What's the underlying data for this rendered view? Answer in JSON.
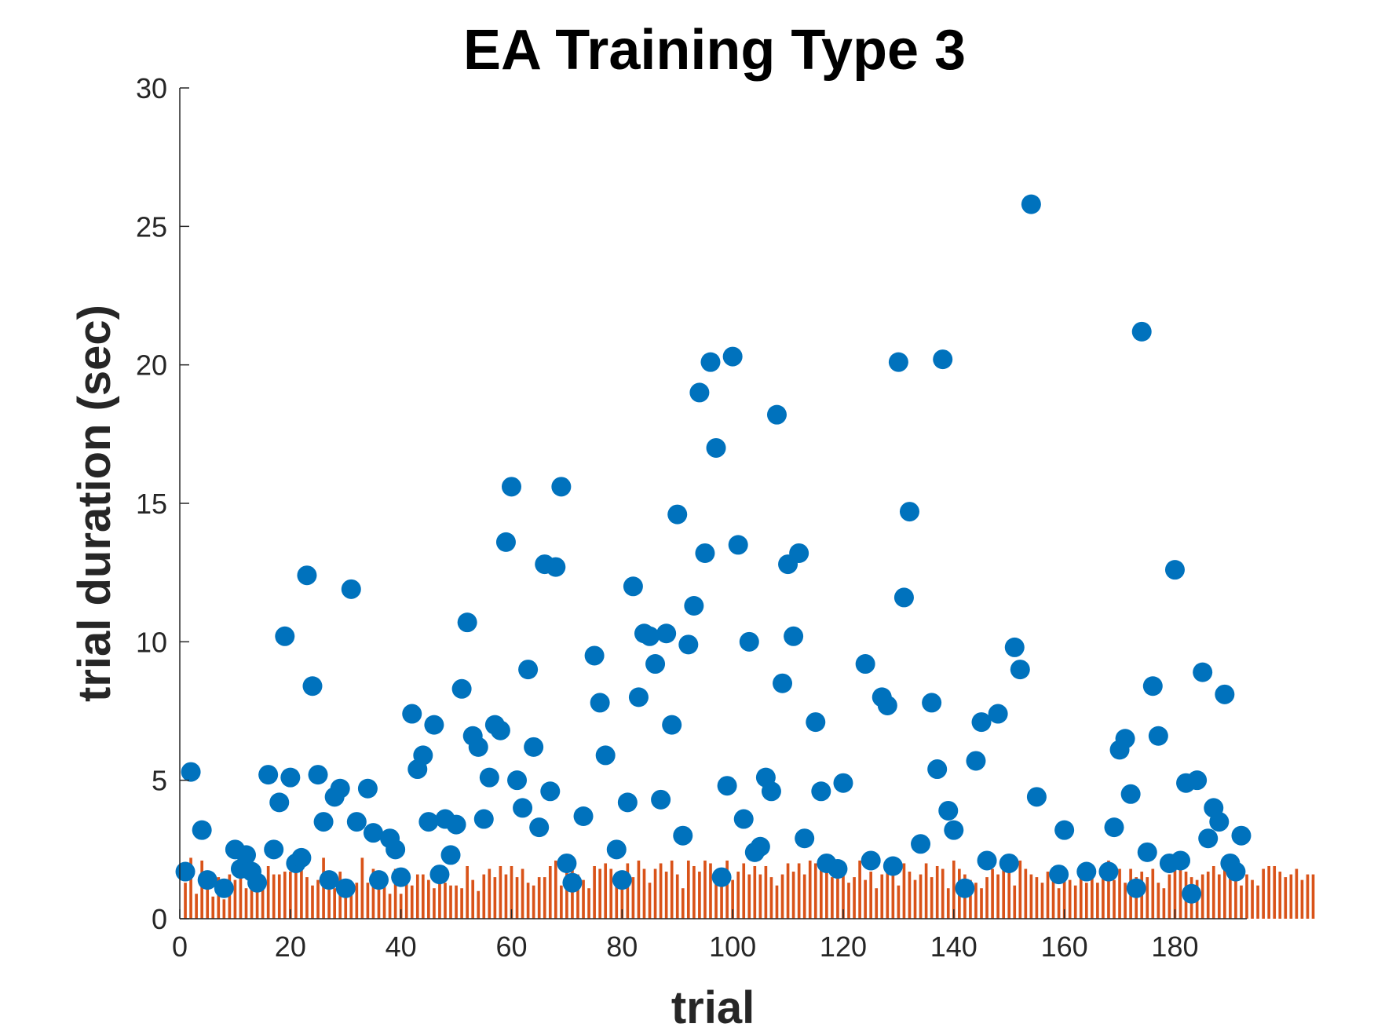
{
  "chart_data": {
    "type": "scatter",
    "title": "EA Training Type 3",
    "xlabel": "trial",
    "ylabel": "trial duration (sec)",
    "xlim": [
      0,
      193
    ],
    "ylim": [
      0,
      30
    ],
    "xticks": [
      0,
      20,
      40,
      60,
      80,
      100,
      120,
      140,
      160,
      180
    ],
    "yticks": [
      0,
      5,
      10,
      15,
      20,
      25,
      30
    ],
    "grid": false,
    "legend": "none",
    "colors": {
      "scatter": "#0072BD",
      "bars": "#D95319",
      "axis": "#262626"
    },
    "series": [
      {
        "kind": "scatter",
        "x": [
          1,
          2,
          4,
          5,
          8,
          10,
          11,
          12,
          13,
          14,
          16,
          17,
          18,
          19,
          20,
          21,
          22,
          23,
          24,
          25,
          26,
          27,
          28,
          29,
          30,
          31,
          32,
          34,
          35,
          36,
          38,
          39,
          40,
          42,
          43,
          44,
          45,
          46,
          47,
          48,
          49,
          50,
          51,
          52,
          53,
          54,
          55,
          56,
          57,
          58,
          59,
          60,
          61,
          62,
          63,
          64,
          65,
          66,
          67,
          68,
          69,
          70,
          71,
          73,
          75,
          76,
          77,
          79,
          80,
          81,
          82,
          83,
          84,
          85,
          86,
          87,
          88,
          89,
          90,
          91,
          92,
          93,
          94,
          95,
          96,
          97,
          98,
          99,
          100,
          101,
          102,
          103,
          104,
          105,
          106,
          107,
          108,
          109,
          110,
          111,
          112,
          113,
          115,
          116,
          117,
          119,
          120,
          124,
          125,
          127,
          128,
          129,
          130,
          131,
          132,
          134,
          136,
          137,
          138,
          139,
          140,
          142,
          144,
          145,
          146,
          148,
          150,
          151,
          152,
          154,
          155,
          159,
          160,
          164,
          168,
          169,
          170,
          171,
          172,
          173,
          174,
          175,
          176,
          177,
          179,
          180,
          181,
          182,
          183,
          184,
          185,
          186,
          187,
          188,
          189,
          190,
          191,
          192
        ],
        "y": [
          1.7,
          5.3,
          3.2,
          1.4,
          1.1,
          2.5,
          1.8,
          2.3,
          1.7,
          1.3,
          5.2,
          2.5,
          4.2,
          10.2,
          5.1,
          2.0,
          2.2,
          12.4,
          8.4,
          5.2,
          3.5,
          1.4,
          4.4,
          4.7,
          1.1,
          11.9,
          3.5,
          4.7,
          3.1,
          1.4,
          2.9,
          2.5,
          1.5,
          7.4,
          5.4,
          5.9,
          3.5,
          7.0,
          1.6,
          3.6,
          2.3,
          3.4,
          8.3,
          10.7,
          6.6,
          6.2,
          3.6,
          5.1,
          7.0,
          6.8,
          13.6,
          15.6,
          5.0,
          4.0,
          9.0,
          6.2,
          3.3,
          12.8,
          4.6,
          12.7,
          15.6,
          2.0,
          1.3,
          3.7,
          9.5,
          7.8,
          5.9,
          2.5,
          1.4,
          4.2,
          12.0,
          8.0,
          10.3,
          10.2,
          9.2,
          4.3,
          10.3,
          7.0,
          14.6,
          3.0,
          9.9,
          11.3,
          19.0,
          13.2,
          20.1,
          17.0,
          1.5,
          4.8,
          20.3,
          13.5,
          3.6,
          10.0,
          2.4,
          2.6,
          5.1,
          4.6,
          18.2,
          8.5,
          12.8,
          10.2,
          13.2,
          2.9,
          7.1,
          4.6,
          2.0,
          1.8,
          4.9,
          9.2,
          2.1,
          8.0,
          7.7,
          1.9,
          20.1,
          11.6,
          14.7,
          2.7,
          7.8,
          5.4,
          20.2,
          3.9,
          3.2,
          1.1,
          5.7,
          7.1,
          2.1,
          7.4,
          2.0,
          9.8,
          9.0,
          25.8,
          4.4,
          1.6,
          3.2,
          1.7,
          1.7,
          3.3,
          6.1,
          6.5,
          4.5,
          1.1,
          21.2,
          2.4,
          8.4,
          6.6,
          2.0,
          12.6,
          2.1,
          4.9,
          0.9,
          5.0,
          8.9,
          2.9,
          4.0,
          3.5,
          8.1,
          2.0,
          1.7,
          3.0
        ]
      },
      {
        "kind": "bar",
        "start_x": 1,
        "values": [
          1.3,
          2.2,
          0.9,
          2.1,
          1.7,
          0.8,
          1.5,
          0.7,
          1.6,
          1.4,
          2.0,
          1.1,
          1.8,
          1.2,
          1.4,
          1.9,
          1.6,
          1.6,
          1.7,
          1.7,
          1.7,
          2.0,
          1.5,
          1.2,
          1.4,
          2.2,
          1.5,
          1.1,
          1.7,
          1.3,
          1.0,
          1.3,
          2.2,
          1.3,
          1.8,
          1.6,
          1.6,
          0.9,
          1.8,
          0.9,
          1.4,
          1.2,
          1.6,
          1.6,
          1.4,
          1.1,
          1.8,
          1.3,
          1.2,
          1.2,
          1.1,
          1.9,
          1.4,
          1.0,
          1.6,
          1.8,
          1.5,
          1.9,
          1.6,
          1.9,
          1.5,
          1.8,
          1.3,
          1.2,
          1.5,
          1.5,
          1.9,
          2.1,
          1.2,
          2.2,
          2.0,
          1.6,
          1.4,
          1.1,
          1.9,
          1.8,
          2.0,
          1.8,
          1.2,
          1.6,
          2.0,
          1.5,
          2.1,
          1.8,
          1.3,
          1.8,
          2.0,
          1.7,
          2.1,
          1.6,
          1.1,
          2.1,
          1.9,
          1.7,
          2.1,
          2.0,
          1.6,
          1.6,
          2.1,
          1.4,
          1.7,
          2.0,
          1.6,
          1.9,
          1.6,
          1.9,
          1.5,
          1.2,
          1.6,
          2.0,
          1.7,
          2.0,
          1.6,
          2.1,
          2.0,
          1.9,
          2.1,
          1.5,
          1.6,
          1.8,
          1.3,
          1.5,
          2.1,
          1.4,
          1.7,
          1.1,
          1.6,
          2.0,
          1.8,
          1.2,
          2.0,
          1.7,
          1.4,
          1.6,
          2.0,
          1.5,
          1.9,
          1.8,
          1.1,
          2.1,
          1.8,
          1.6,
          1.4,
          1.3,
          1.1,
          1.5,
          1.8,
          1.6,
          2.0,
          1.7,
          1.2,
          2.1,
          1.8,
          1.6,
          1.5,
          1.3,
          1.7,
          1.6,
          1.1,
          1.5,
          1.4,
          1.2,
          1.6,
          1.3,
          1.9,
          1.3,
          1.6,
          2.1,
          1.4,
          1.8,
          1.3,
          1.8,
          1.5,
          1.7,
          1.5,
          1.8,
          1.3,
          1.1,
          1.6,
          1.8,
          1.8,
          1.7,
          1.5,
          1.4,
          1.6,
          1.7,
          1.9,
          1.6,
          2.0,
          1.7,
          1.8,
          1.2,
          1.6,
          1.4,
          1.2,
          1.8,
          1.9,
          1.9,
          1.7,
          1.5,
          1.6,
          1.8,
          1.4,
          1.6,
          1.6
        ]
      }
    ]
  }
}
